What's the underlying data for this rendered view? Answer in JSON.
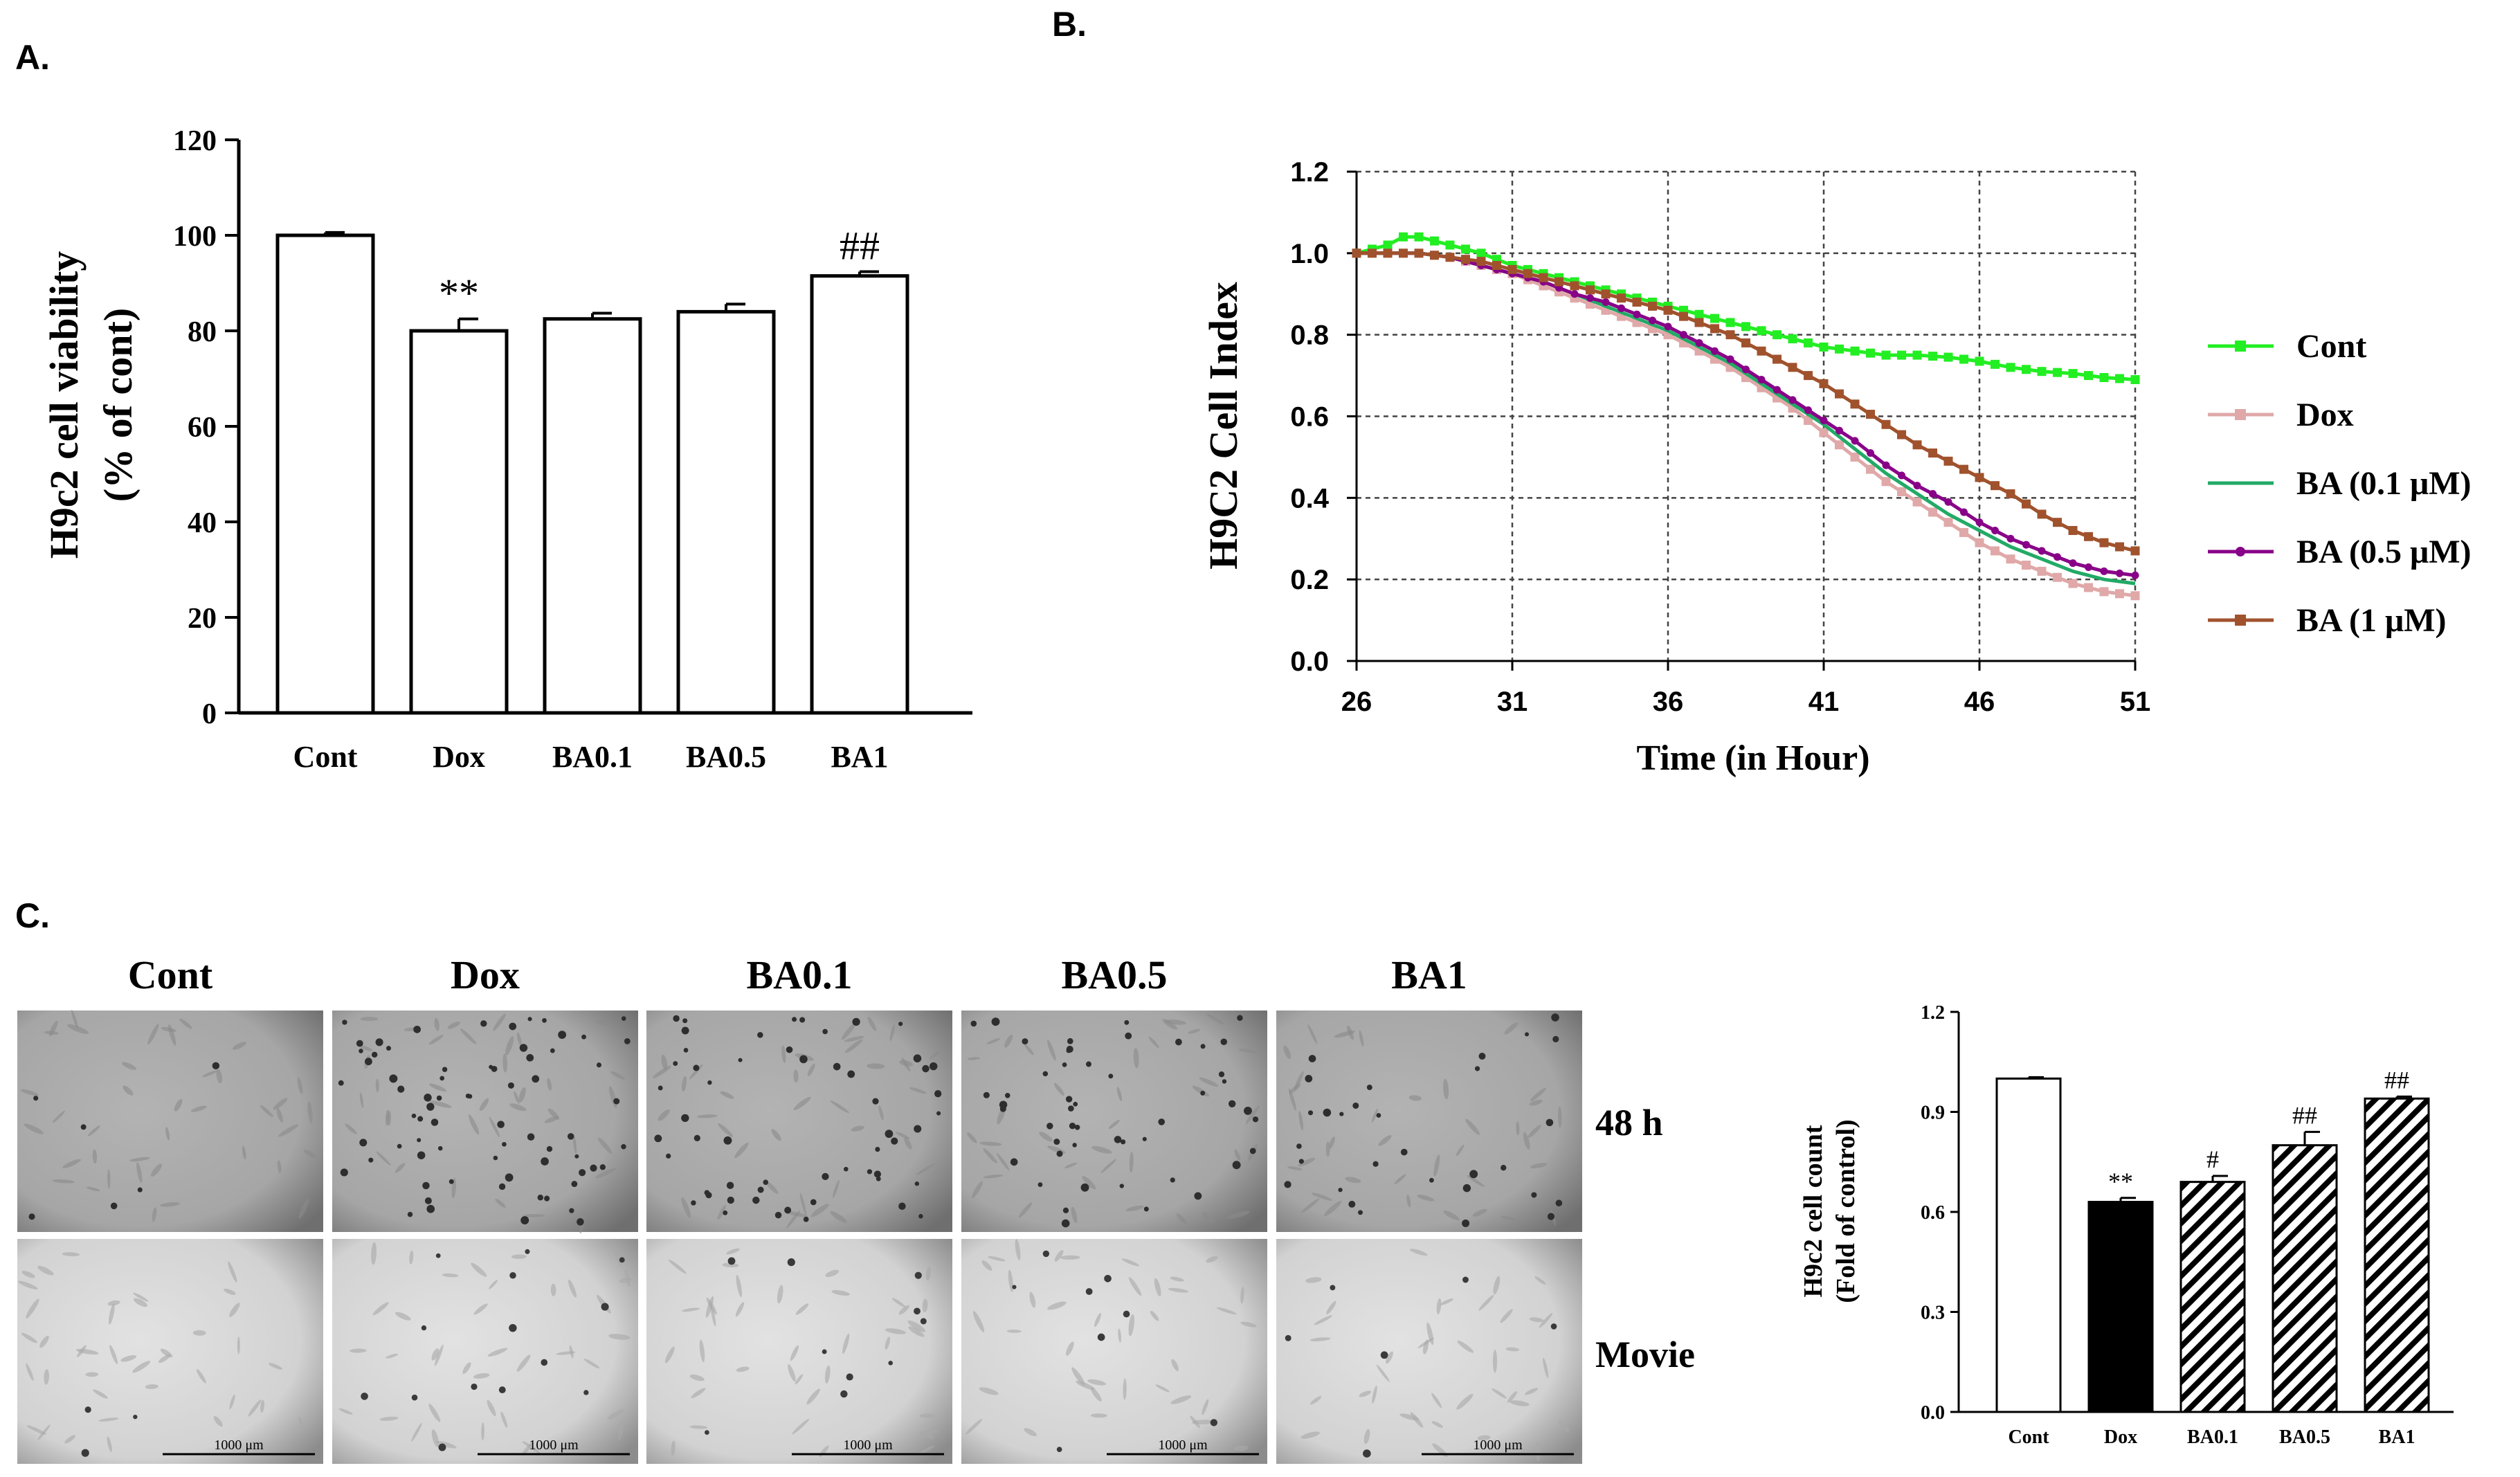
{
  "panels": {
    "a_label": "A.",
    "b_label": "B.",
    "c_label": "C."
  },
  "chart_data": [
    {
      "id": "A",
      "type": "bar",
      "title": "",
      "xlabel": "",
      "ylabel_line1": "H9c2 cell viability",
      "ylabel_line2": "(% of cont)",
      "categories": [
        "Cont",
        "Dox",
        "BA0.1",
        "BA0.5",
        "BA1"
      ],
      "values": [
        100,
        80,
        82.5,
        84,
        91.5
      ],
      "errors": [
        0.6,
        2.5,
        1.2,
        1.6,
        0.9
      ],
      "annotations": [
        "",
        "**",
        "",
        "",
        "##"
      ],
      "ylim": [
        0,
        120
      ],
      "yticks": [
        0,
        20,
        40,
        60,
        80,
        100,
        120
      ]
    },
    {
      "id": "B",
      "type": "line",
      "xlabel": "Time (in Hour)",
      "ylabel": "H9C2 Cell Index",
      "xlim": [
        26,
        51
      ],
      "ylim": [
        0,
        1.2
      ],
      "xticks": [
        26,
        31,
        36,
        41,
        46,
        51
      ],
      "yticks": [
        "0.0",
        "0.2",
        "0.4",
        "0.6",
        "0.8",
        "1.0",
        "1.2"
      ],
      "grid": true,
      "series": [
        {
          "name": "Cont",
          "color": "#22ee22",
          "marker": "square",
          "x": [
            26,
            27,
            27.5,
            28,
            29,
            30,
            31,
            32,
            33,
            34,
            35,
            36,
            37,
            38,
            39,
            40,
            41,
            42,
            43,
            44,
            45,
            46,
            47,
            48,
            49,
            50,
            51
          ],
          "y": [
            1.0,
            1.02,
            1.04,
            1.04,
            1.02,
            1.0,
            0.97,
            0.95,
            0.93,
            0.91,
            0.89,
            0.87,
            0.85,
            0.83,
            0.81,
            0.79,
            0.77,
            0.76,
            0.75,
            0.75,
            0.745,
            0.735,
            0.72,
            0.71,
            0.705,
            0.695,
            0.69
          ]
        },
        {
          "name": "Dox",
          "color": "#e0a8a8",
          "marker": "square",
          "x": [
            26,
            27,
            28,
            29,
            30,
            31,
            32,
            33,
            34,
            35,
            36,
            37,
            38,
            39,
            40,
            41,
            42,
            43,
            44,
            45,
            46,
            47,
            48,
            49,
            50,
            51
          ],
          "y": [
            1.0,
            1.0,
            1.0,
            0.99,
            0.97,
            0.95,
            0.92,
            0.89,
            0.86,
            0.83,
            0.8,
            0.76,
            0.72,
            0.67,
            0.62,
            0.56,
            0.5,
            0.44,
            0.39,
            0.34,
            0.29,
            0.25,
            0.22,
            0.19,
            0.17,
            0.16
          ]
        },
        {
          "name": "BA (0.1 μM)",
          "color": "#22aa66",
          "marker": "none",
          "x": [
            26,
            27,
            28,
            29,
            30,
            31,
            32,
            33,
            34,
            35,
            36,
            37,
            38,
            39,
            40,
            41,
            42,
            43,
            44,
            45,
            46,
            47,
            48,
            49,
            50,
            51
          ],
          "y": [
            1.0,
            1.0,
            1.0,
            0.99,
            0.97,
            0.95,
            0.93,
            0.9,
            0.87,
            0.84,
            0.81,
            0.77,
            0.73,
            0.68,
            0.63,
            0.58,
            0.52,
            0.46,
            0.41,
            0.36,
            0.32,
            0.28,
            0.25,
            0.22,
            0.2,
            0.19
          ]
        },
        {
          "name": "BA (0.5 μM)",
          "color": "#880088",
          "marker": "circle",
          "x": [
            26,
            27,
            28,
            29,
            30,
            31,
            32,
            33,
            34,
            35,
            36,
            37,
            38,
            39,
            40,
            41,
            42,
            43,
            44,
            45,
            46,
            47,
            48,
            49,
            50,
            51
          ],
          "y": [
            1.0,
            1.0,
            1.0,
            0.99,
            0.97,
            0.95,
            0.93,
            0.9,
            0.88,
            0.85,
            0.82,
            0.78,
            0.74,
            0.69,
            0.64,
            0.59,
            0.54,
            0.48,
            0.43,
            0.39,
            0.34,
            0.3,
            0.27,
            0.24,
            0.22,
            0.21
          ]
        },
        {
          "name": "BA (1 μM)",
          "color": "#a0522d",
          "marker": "square",
          "x": [
            26,
            27,
            28,
            29,
            30,
            31,
            32,
            33,
            34,
            35,
            36,
            37,
            38,
            39,
            40,
            41,
            42,
            43,
            44,
            45,
            46,
            47,
            48,
            49,
            50,
            51
          ],
          "y": [
            1.0,
            1.0,
            1.0,
            0.99,
            0.98,
            0.96,
            0.94,
            0.92,
            0.9,
            0.88,
            0.86,
            0.83,
            0.8,
            0.76,
            0.72,
            0.68,
            0.63,
            0.58,
            0.53,
            0.49,
            0.45,
            0.41,
            0.36,
            0.32,
            0.29,
            0.27
          ]
        }
      ]
    },
    {
      "id": "C",
      "type": "bar",
      "xlabel": "",
      "ylabel_line1": "H9c2 cell count",
      "ylabel_line2": "(Fold of control)",
      "categories": [
        "Cont",
        "Dox",
        "BA0.1",
        "BA0.5",
        "BA1"
      ],
      "values": [
        1.0,
        0.63,
        0.69,
        0.8,
        0.94
      ],
      "errors": [
        0.004,
        0.012,
        0.018,
        0.04,
        0.006
      ],
      "fills": [
        "white",
        "black",
        "hatch",
        "hatch",
        "hatch"
      ],
      "annotations": [
        "",
        "**",
        "#",
        "##",
        "##"
      ],
      "ylim": [
        0,
        1.2
      ],
      "yticks": [
        "0.0",
        "0.3",
        "0.6",
        "0.9",
        "1.2"
      ]
    }
  ],
  "micrographs": {
    "column_labels": [
      "Cont",
      "Dox",
      "BA0.1",
      "BA0.5",
      "BA1"
    ],
    "row_labels": [
      "48 h",
      "Movie"
    ],
    "scale_bar_label": "1000 μm",
    "colors": {
      "row1": "#a9a9a9",
      "row2": "#d6d6d6"
    }
  }
}
